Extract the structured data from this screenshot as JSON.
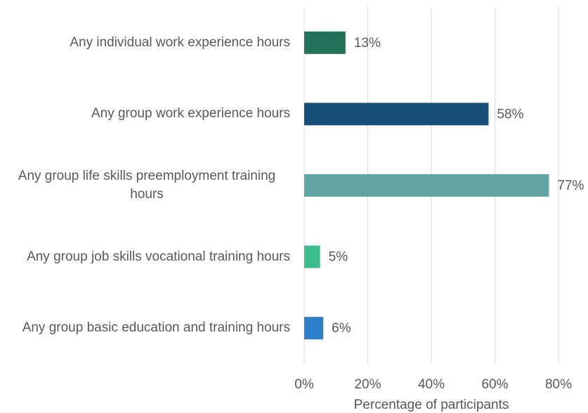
{
  "chart_data": {
    "type": "barh",
    "categories": [
      "Any individual work experience hours",
      "Any group work experience hours",
      "Any group life skills preemployment training hours",
      "Any group job skills vocational training hours",
      "Any group basic education and training hours"
    ],
    "values": [
      13,
      58,
      77,
      5,
      6
    ],
    "value_labels": [
      "13%",
      "58%",
      "77%",
      "5%",
      "6%"
    ],
    "colors": [
      "#23735a",
      "#174f78",
      "#63a5a0",
      "#3dbd8e",
      "#2d7fca"
    ],
    "x_label": "Percentage of participants",
    "xlim": [
      0,
      80
    ],
    "xticks": [
      {
        "value": 0,
        "label": "0%"
      },
      {
        "value": 20,
        "label": "20%"
      },
      {
        "value": 40,
        "label": "40%"
      },
      {
        "value": 60,
        "label": "60%"
      },
      {
        "value": 80,
        "label": "80%"
      }
    ],
    "grid": true
  }
}
